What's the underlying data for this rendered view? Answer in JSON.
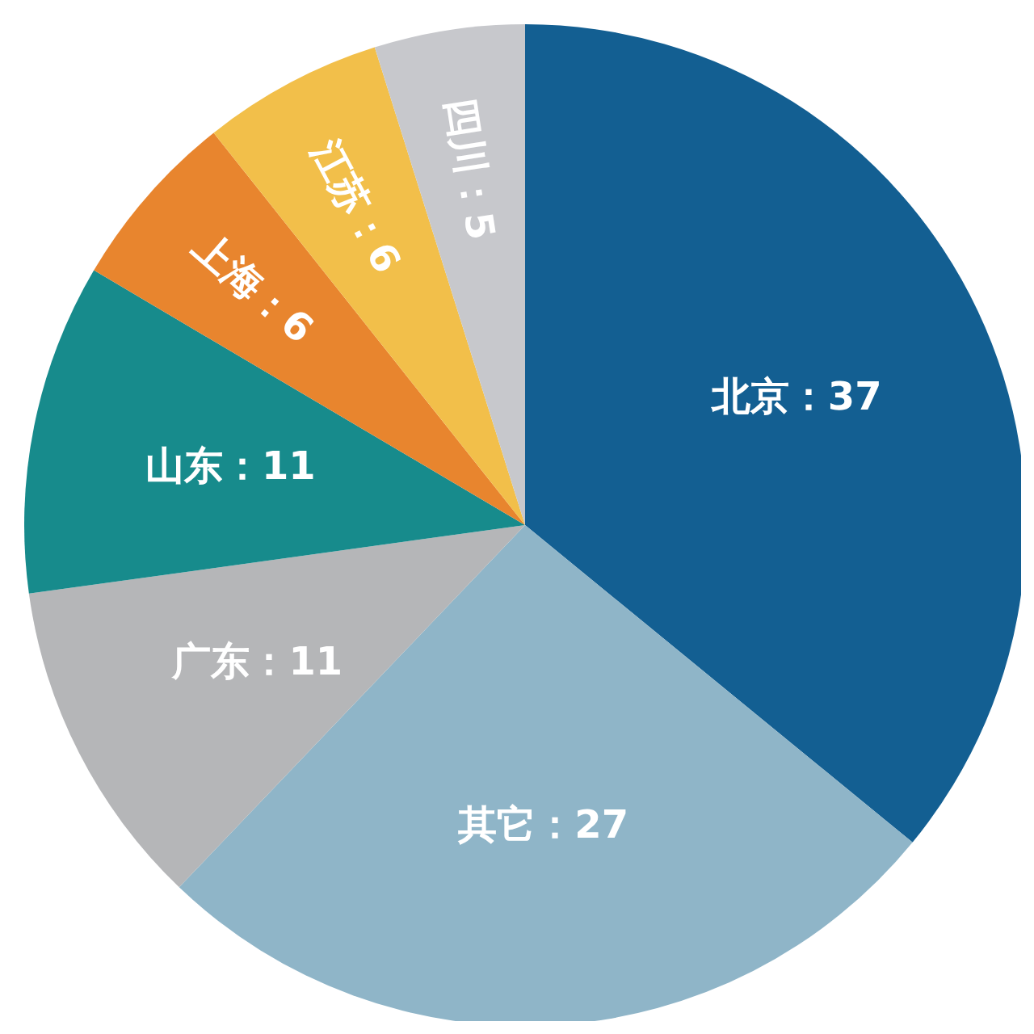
{
  "chart_data": {
    "type": "pie",
    "categories": [
      "北京",
      "其它",
      "广东",
      "山东",
      "上海",
      "江苏",
      "四川"
    ],
    "values": [
      37,
      27,
      11,
      11,
      6,
      6,
      5
    ],
    "colors": [
      "#135f92",
      "#8fb5c8",
      "#b5b6b8",
      "#178b8c",
      "#e8852e",
      "#f2bf4a",
      "#c7c8cc"
    ],
    "value_labels": [
      "：37",
      "：27",
      "：11",
      "：11",
      "：6",
      "：6",
      "：5"
    ],
    "legend": false
  }
}
